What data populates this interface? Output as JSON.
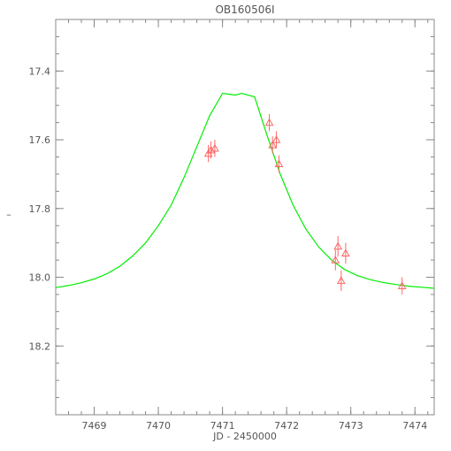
{
  "chart_data": {
    "type": "scatter",
    "title": "OB160506I",
    "xlabel": "JD - 2450000",
    "ylabel": "–",
    "xlim": [
      7468.4,
      7474.3
    ],
    "ylim": [
      18.4,
      17.25
    ],
    "y_inverted": true,
    "xticks": [
      7469,
      7470,
      7471,
      7472,
      7473,
      7474
    ],
    "xtick_labels": [
      "7469",
      "7470",
      "7471",
      "7472",
      "7473",
      "7474"
    ],
    "yticks": [
      17.4,
      17.6,
      17.8,
      18.0,
      18.2
    ],
    "ytick_labels": [
      "17.4",
      "17.6",
      "17.8",
      "18.0",
      "18.2"
    ],
    "x_minor_step": 0.2,
    "y_minor_step": 0.05,
    "grid": false,
    "series": [
      {
        "kind": "line",
        "color": "#00ee00",
        "x": [
          7468.4,
          7468.6,
          7468.8,
          7469.0,
          7469.2,
          7469.4,
          7469.6,
          7469.8,
          7470.0,
          7470.2,
          7470.4,
          7470.6,
          7470.8,
          7471.0,
          7471.2,
          7471.3,
          7471.5,
          7471.7,
          7471.9,
          7472.1,
          7472.3,
          7472.5,
          7472.7,
          7472.9,
          7473.1,
          7473.3,
          7473.5,
          7473.7,
          7473.9,
          7474.1,
          7474.3
        ],
        "y": [
          18.03,
          18.024,
          18.016,
          18.005,
          17.99,
          17.968,
          17.938,
          17.9,
          17.85,
          17.79,
          17.71,
          17.62,
          17.53,
          17.465,
          17.47,
          17.465,
          17.475,
          17.59,
          17.7,
          17.79,
          17.86,
          17.912,
          17.95,
          17.977,
          17.995,
          18.007,
          18.015,
          18.021,
          18.026,
          18.029,
          18.032
        ]
      },
      {
        "kind": "points",
        "marker": "triangle",
        "color": "#ff6666",
        "x": [
          7470.78,
          7470.82,
          7470.88,
          7471.73,
          7471.78,
          7471.84,
          7471.88,
          7472.76,
          7472.8,
          7472.85,
          7472.92,
          7473.8
        ],
        "y": [
          17.64,
          17.63,
          17.625,
          17.55,
          17.615,
          17.6,
          17.67,
          17.95,
          17.91,
          18.01,
          17.93,
          18.025
        ],
        "yerr": [
          0.025,
          0.025,
          0.025,
          0.025,
          0.025,
          0.025,
          0.025,
          0.03,
          0.03,
          0.03,
          0.03,
          0.025
        ]
      }
    ]
  }
}
